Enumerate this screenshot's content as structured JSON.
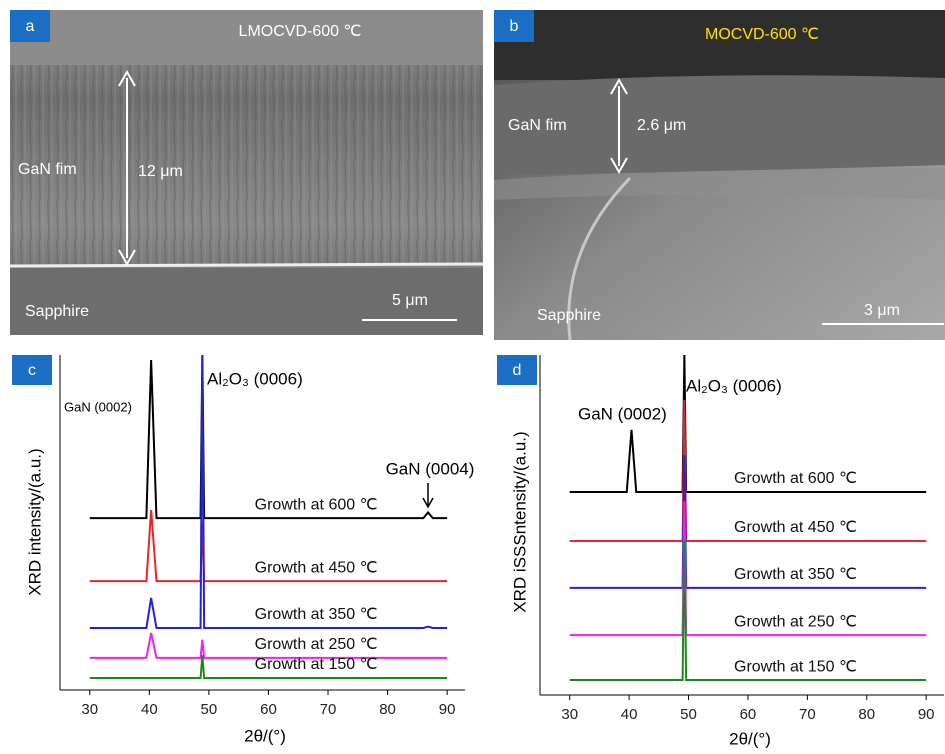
{
  "panels": [
    {
      "label": "a",
      "title": "LMOCVD-600 ℃",
      "film_label": "GaN fim",
      "thickness": "12 μm",
      "substrate": "Sapphire",
      "scale_bar": "5 μm"
    },
    {
      "label": "b",
      "title": "MOCVD-600 ℃",
      "film_label": "GaN fim",
      "thickness": "2.6 μm",
      "substrate": "Sapphire",
      "scale_bar": "3 μm"
    }
  ],
  "chart_data": [
    {
      "type": "line",
      "panel": "c",
      "y_label": "XRD intensity/(a.u.)",
      "x_label": "2θ/(°)",
      "annotations": [
        "GaN (0002)",
        "Al₂O₃ (0006)",
        "GaN (0004)"
      ],
      "xlim": [
        25,
        93
      ],
      "xticks": [
        30,
        40,
        50,
        60,
        70,
        80,
        90
      ],
      "ylim": [
        0,
        100
      ],
      "x": [
        30,
        39.5,
        40.3,
        41.2,
        48.6,
        48.9,
        49.2,
        86,
        86.8,
        87.6,
        90
      ],
      "series": [
        {
          "name": "Growth at 600 ℃",
          "color": "#000000",
          "values": [
            51.3,
            51.3,
            98.5,
            51.3,
            51.3,
            100,
            51.3,
            51.3,
            53,
            51.3,
            51.3
          ]
        },
        {
          "name": "Growth at 450 ℃",
          "color": "#e8262b",
          "values": [
            32.5,
            32.5,
            53.7,
            32.5,
            32.5,
            50,
            32.5,
            32.5,
            32.5,
            32.5,
            32.5
          ]
        },
        {
          "name": "Growth at 350 ℃",
          "color": "#2222dd",
          "values": [
            18.5,
            18.5,
            27.5,
            18.5,
            18.5,
            100,
            18.5,
            18.5,
            18.9,
            18.5,
            18.5
          ]
        },
        {
          "name": "Growth at 250 ℃",
          "color": "#ee22ee",
          "values": [
            9.6,
            9.6,
            17,
            9.6,
            9.6,
            15,
            9.6,
            9.6,
            9.6,
            9.6,
            9.6
          ]
        },
        {
          "name": "Growth at 150 ℃",
          "color": "#1a8a1a",
          "values": [
            3.6,
            3.6,
            3.6,
            3.6,
            3.6,
            10.4,
            3.6,
            3.6,
            3.6,
            3.6,
            3.6
          ]
        }
      ]
    },
    {
      "type": "line",
      "panel": "d",
      "y_label": "XRD iSSSntensity/(a.u.)",
      "x_label": "2θ/(°)",
      "annotations": [
        "GaN (0002)",
        "Al₂O₃ (0006)"
      ],
      "xlim": [
        25,
        93
      ],
      "xticks": [
        30,
        40,
        50,
        60,
        70,
        80,
        90
      ],
      "ylim": [
        0,
        100
      ],
      "x": [
        30,
        39.6,
        40.4,
        41.2,
        49.0,
        49.3,
        49.6,
        90
      ],
      "series": [
        {
          "name": "Growth at 600 ℃",
          "color": "#000000",
          "values": [
            59.7,
            59.7,
            78,
            59.7,
            59.7,
            100,
            59.7,
            59.7
          ]
        },
        {
          "name": "Growth at 450 ℃",
          "color": "#e8262b",
          "values": [
            45.3,
            45.3,
            45.3,
            45.3,
            45.3,
            86.8,
            45.3,
            45.3
          ]
        },
        {
          "name": "Growth at 350 ℃",
          "color": "#2222dd",
          "values": [
            31.5,
            31.5,
            31.5,
            31.5,
            31.5,
            70.6,
            31.5,
            31.5
          ]
        },
        {
          "name": "Growth at 250 ℃",
          "color": "#ee22ee",
          "values": [
            17.6,
            17.6,
            17.6,
            17.6,
            17.6,
            57,
            17.6,
            17.6
          ]
        },
        {
          "name": "Growth at 150 ℃",
          "color": "#1a8a1a",
          "values": [
            4.4,
            4.4,
            4.4,
            4.4,
            4.4,
            45.6,
            4.4,
            4.4
          ]
        }
      ]
    }
  ]
}
